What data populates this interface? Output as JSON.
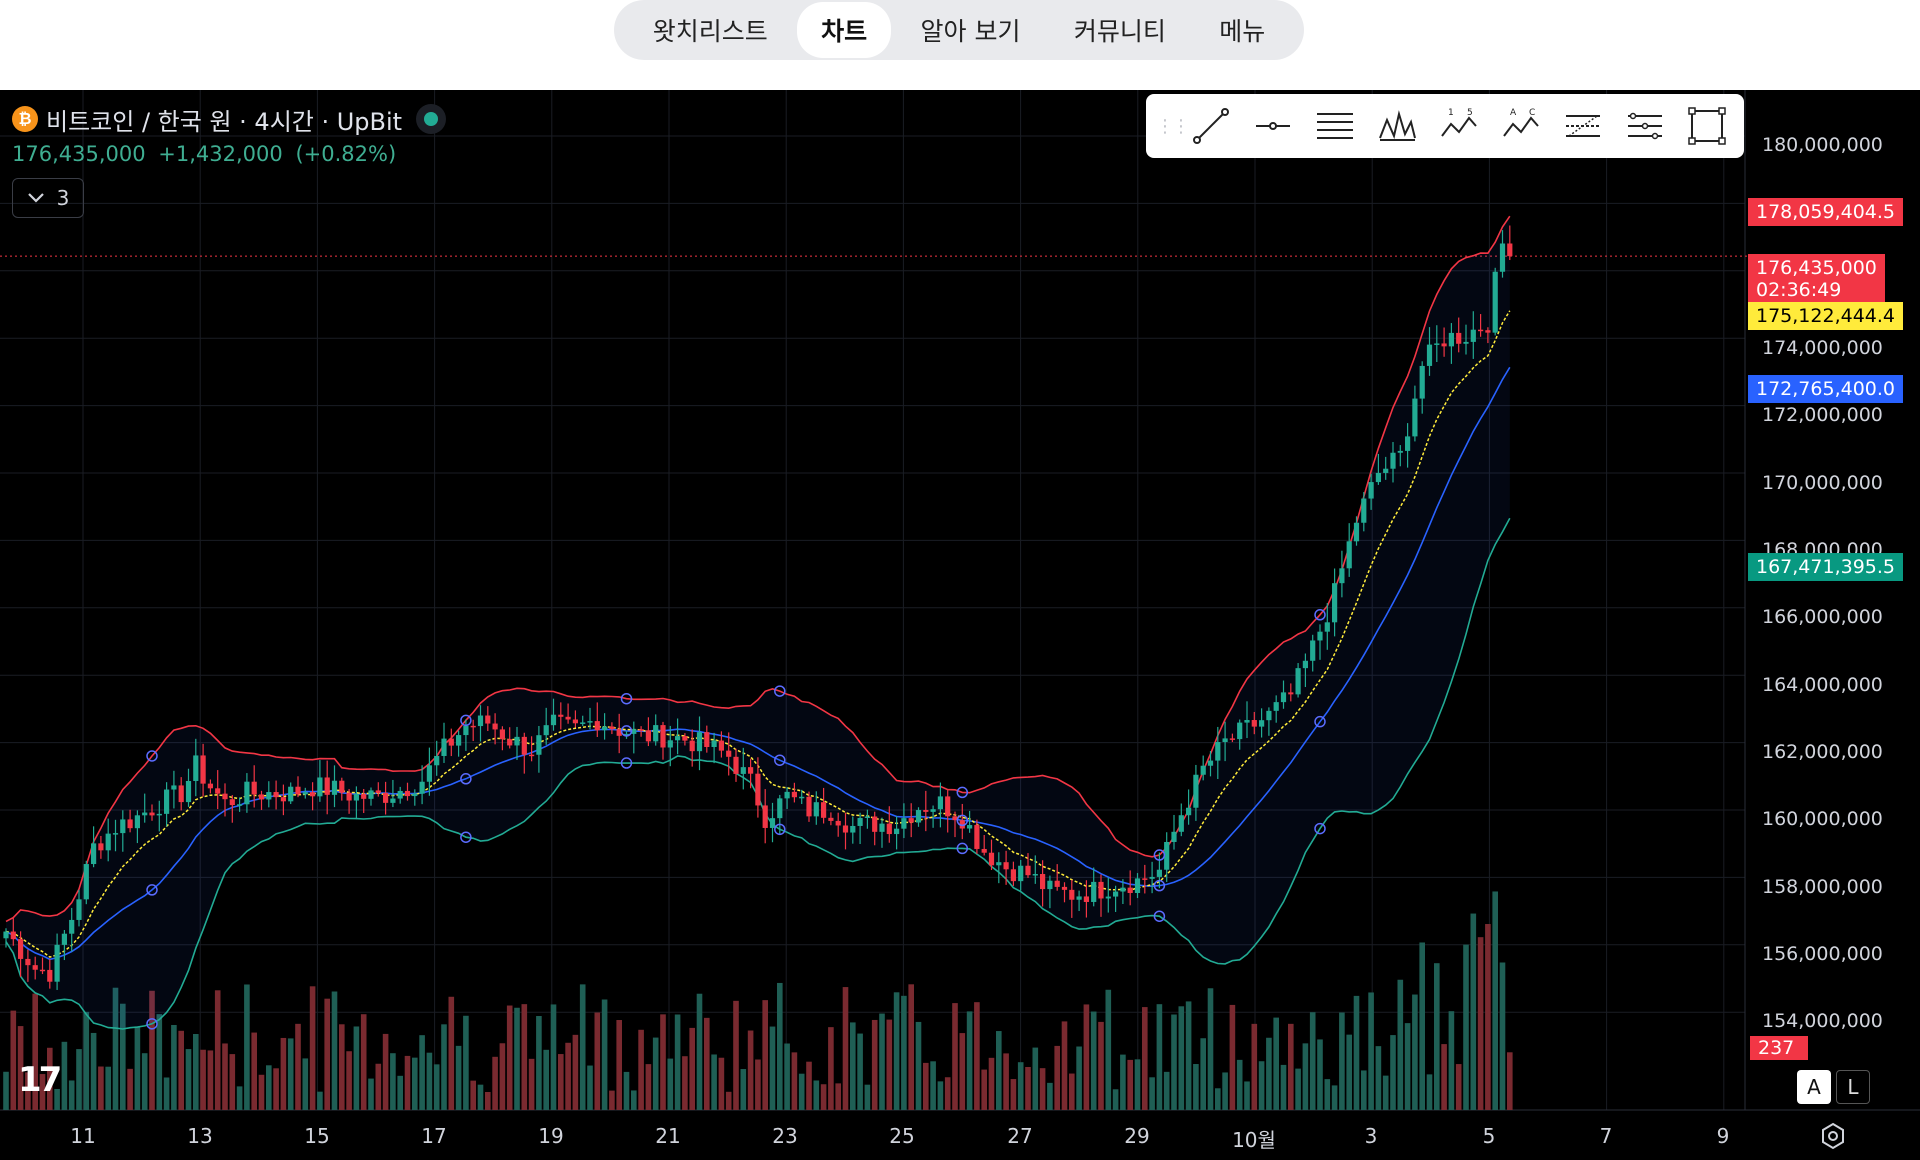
{
  "nav": {
    "tabs": [
      {
        "label": "왓치리스트",
        "active": false
      },
      {
        "label": "차트",
        "active": true
      },
      {
        "label": "알아 보기",
        "active": false
      },
      {
        "label": "커뮤니티",
        "active": false
      },
      {
        "label": "메뉴",
        "active": false
      }
    ]
  },
  "legend": {
    "symbol": "비트코인 / 한국 원 · 4시간 · UpBit",
    "last": "176,435,000",
    "change": "+1,432,000",
    "change_pct": "(+0.82%)",
    "indicator_count": "3",
    "market_status": "open"
  },
  "toolbar": {
    "tools": [
      "trend-line-icon",
      "horizontal-ray-icon",
      "parallel-channel-icon",
      "pitchfork-icon",
      "xabcd-pattern-icon",
      "abcd-pattern-icon",
      "fib-retracement-icon",
      "fib-extension-icon",
      "rectangle-icon"
    ]
  },
  "price_axis": {
    "ticks": [
      "180,000,000",
      "174,000,000",
      "172,000,000",
      "170,000,000",
      "168,000,000",
      "166,000,000",
      "164,000,000",
      "162,000,000",
      "160,000,000",
      "158,000,000",
      "156,000,000",
      "154,000,000"
    ],
    "labels": {
      "bb_upper": "178,059,404.5",
      "last_price": "176,435,000",
      "countdown": "02:36:49",
      "ema": "175,122,444.4",
      "bb_basis": "172,765,400.0",
      "bb_lower": "167,471,395.5",
      "volume": "237"
    }
  },
  "time_axis": {
    "ticks": [
      "11",
      "13",
      "15",
      "17",
      "19",
      "21",
      "23",
      "25",
      "27",
      "29",
      "10월",
      "3",
      "5",
      "7",
      "9"
    ]
  },
  "buttons": {
    "auto": "A",
    "log": "L"
  },
  "colors": {
    "up": "#22ab94",
    "down": "#f23645",
    "bb_upper": "#f23645",
    "bb_basis": "#2962ff",
    "bb_lower": "#22ab94",
    "ema": "#ffeb3b",
    "vol_up": "#1f5f55",
    "vol_down": "#7a2a30"
  },
  "chart_data": {
    "type": "candlestick",
    "interval": "4h",
    "ylim": [
      153000000,
      181000000
    ],
    "last_close": 176435000,
    "indicators": {
      "bb_upper": 178059404.5,
      "bb_basis": 172765400.0,
      "bb_lower": 167471395.5,
      "ema": 175122444.4,
      "volume": 237
    },
    "close_path": [
      [
        0,
        156400000
      ],
      [
        4,
        155300000
      ],
      [
        6,
        155200000
      ],
      [
        9,
        156800000
      ],
      [
        12,
        158900000
      ],
      [
        15,
        159500000
      ],
      [
        18,
        159800000
      ],
      [
        21,
        160200000
      ],
      [
        24,
        160500000
      ],
      [
        26,
        161300000
      ],
      [
        28,
        160700000
      ],
      [
        30,
        160200000
      ],
      [
        33,
        160500000
      ],
      [
        36,
        160500000
      ],
      [
        39,
        160500000
      ],
      [
        42,
        160700000
      ],
      [
        45,
        160600000
      ],
      [
        48,
        160400000
      ],
      [
        51,
        160400000
      ],
      [
        54,
        160600000
      ],
      [
        57,
        160900000
      ],
      [
        60,
        161800000
      ],
      [
        63,
        162500000
      ],
      [
        66,
        162600000
      ],
      [
        69,
        162100000
      ],
      [
        72,
        161800000
      ],
      [
        75,
        162500000
      ],
      [
        78,
        162400000
      ],
      [
        81,
        162700000
      ],
      [
        84,
        162400000
      ],
      [
        87,
        162200000
      ],
      [
        90,
        162200000
      ],
      [
        93,
        162100000
      ],
      [
        96,
        161900000
      ],
      [
        99,
        161600000
      ],
      [
        102,
        160800000
      ],
      [
        104,
        159800000
      ],
      [
        107,
        160400000
      ],
      [
        110,
        160000000
      ],
      [
        113,
        160000000
      ],
      [
        116,
        159500000
      ],
      [
        119,
        159600000
      ],
      [
        122,
        159600000
      ],
      [
        125,
        160100000
      ],
      [
        128,
        160200000
      ],
      [
        131,
        159800000
      ],
      [
        134,
        158800000
      ],
      [
        137,
        158300000
      ],
      [
        140,
        158100000
      ],
      [
        143,
        157600000
      ],
      [
        146,
        157500000
      ],
      [
        149,
        157600000
      ],
      [
        152,
        157800000
      ],
      [
        155,
        157900000
      ],
      [
        158,
        158200000
      ],
      [
        161,
        159900000
      ],
      [
        164,
        161200000
      ],
      [
        167,
        162000000
      ],
      [
        170,
        162400000
      ],
      [
        173,
        162800000
      ],
      [
        176,
        163400000
      ],
      [
        179,
        164800000
      ],
      [
        182,
        166400000
      ],
      [
        185,
        168600000
      ],
      [
        188,
        170000000
      ],
      [
        191,
        170500000
      ],
      [
        194,
        173200000
      ],
      [
        197,
        174000000
      ],
      [
        200,
        174100000
      ],
      [
        203,
        174500000
      ],
      [
        205,
        176800000
      ],
      [
        206,
        176435000
      ]
    ]
  }
}
